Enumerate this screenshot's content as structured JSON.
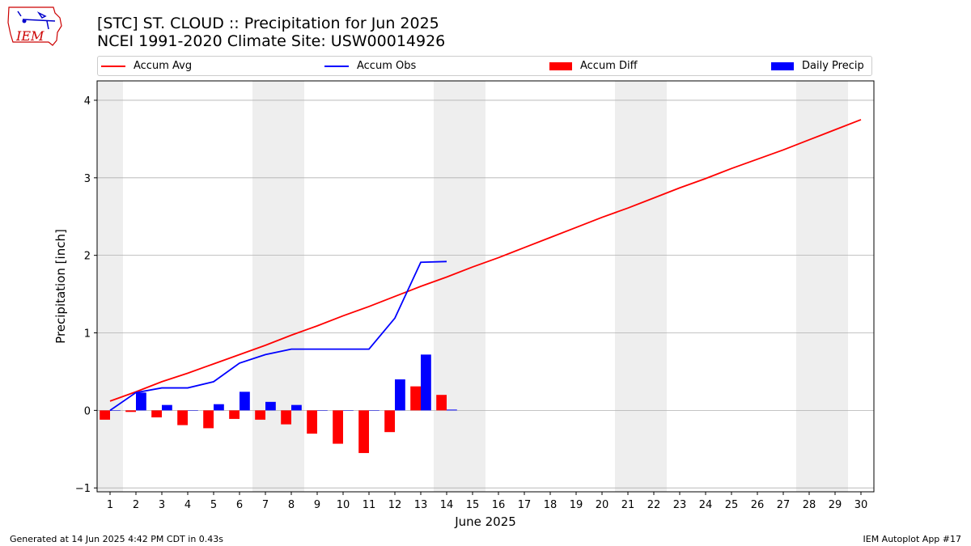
{
  "header": {
    "title_line1": "[STC] ST. CLOUD :: Precipitation for Jun 2025",
    "title_line2": "NCEI 1991-2020 Climate Site: USW00014926"
  },
  "logo": {
    "text": "IEM"
  },
  "footer": {
    "left": "Generated at 14 Jun 2025 4:42 PM CDT in 0.43s",
    "right": "IEM Autoplot App #17"
  },
  "colors": {
    "avg": "#ff0000",
    "obs": "#0000ff",
    "diff": "#ff0000",
    "daily": "#0000ff",
    "weekend_shade": "#eeeeee",
    "grid": "#b0b0b0"
  },
  "chart_data": {
    "type": "bar",
    "xlabel": "June 2025",
    "ylabel": "Precipitation [inch]",
    "xlim": [
      0.5,
      30.5
    ],
    "ylim": [
      -1.05,
      4.25
    ],
    "yticks": [
      -1,
      0,
      1,
      2,
      3,
      4
    ],
    "grid": true,
    "legend_position": "top",
    "days": [
      1,
      2,
      3,
      4,
      5,
      6,
      7,
      8,
      9,
      10,
      11,
      12,
      13,
      14,
      15,
      16,
      17,
      18,
      19,
      20,
      21,
      22,
      23,
      24,
      25,
      26,
      27,
      28,
      29,
      30
    ],
    "weekend_days": [
      1,
      7,
      8,
      14,
      15,
      21,
      22,
      28,
      29
    ],
    "series": [
      {
        "name": "Accum Avg",
        "kind": "line",
        "x": [
          1,
          2,
          3,
          4,
          5,
          6,
          7,
          8,
          9,
          10,
          11,
          12,
          13,
          14,
          15,
          16,
          17,
          18,
          19,
          20,
          21,
          22,
          23,
          24,
          25,
          26,
          27,
          28,
          29,
          30
        ],
        "values": [
          0.12,
          0.24,
          0.37,
          0.48,
          0.6,
          0.72,
          0.84,
          0.97,
          1.09,
          1.22,
          1.34,
          1.47,
          1.6,
          1.72,
          1.85,
          1.97,
          2.1,
          2.23,
          2.36,
          2.49,
          2.61,
          2.74,
          2.87,
          2.99,
          3.12,
          3.24,
          3.36,
          3.49,
          3.62,
          3.75
        ]
      },
      {
        "name": "Accum Obs",
        "kind": "line",
        "x": [
          1,
          2,
          3,
          4,
          5,
          6,
          7,
          8,
          9,
          10,
          11,
          12,
          13,
          14
        ],
        "values": [
          0.0,
          0.23,
          0.29,
          0.29,
          0.37,
          0.61,
          0.72,
          0.79,
          0.79,
          0.79,
          0.79,
          1.19,
          1.91,
          1.92
        ]
      },
      {
        "name": "Accum Diff",
        "kind": "bar",
        "x": [
          1,
          2,
          3,
          4,
          5,
          6,
          7,
          8,
          9,
          10,
          11,
          12,
          13,
          14
        ],
        "values": [
          -0.12,
          -0.02,
          -0.09,
          -0.19,
          -0.23,
          -0.11,
          -0.12,
          -0.18,
          -0.3,
          -0.43,
          -0.55,
          -0.28,
          0.31,
          0.2
        ]
      },
      {
        "name": "Daily Precip",
        "kind": "bar",
        "x": [
          1,
          2,
          3,
          4,
          5,
          6,
          7,
          8,
          9,
          10,
          11,
          12,
          13,
          14
        ],
        "values": [
          0.0,
          0.23,
          0.07,
          0.0,
          0.08,
          0.24,
          0.11,
          0.07,
          0.0,
          0.0,
          0.0,
          0.4,
          0.72,
          0.01
        ]
      }
    ]
  }
}
